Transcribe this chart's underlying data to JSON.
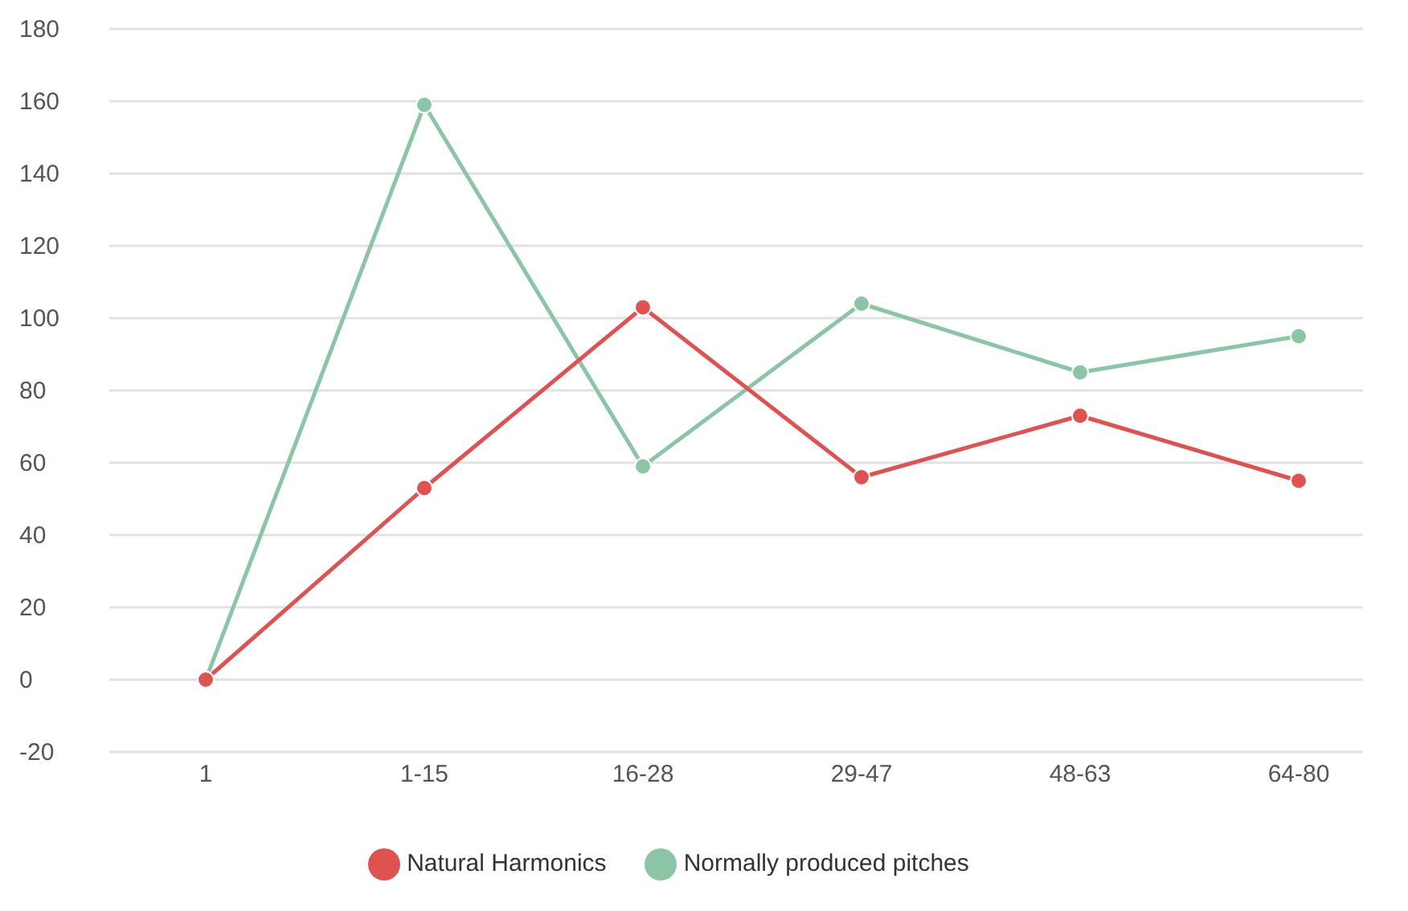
{
  "chart_data": {
    "type": "line",
    "categories": [
      "1",
      "1-15",
      "16-28",
      "29-47",
      "48-63",
      "64-80"
    ],
    "series": [
      {
        "name": "Normally produced pitches",
        "color": "#8cc5a6",
        "values": [
          0,
          159,
          59,
          104,
          85,
          95
        ]
      },
      {
        "name": "Natural Harmonics",
        "color": "#e05252",
        "values": [
          0,
          53,
          103,
          56,
          73,
          55
        ]
      }
    ],
    "ylim": [
      -20,
      180
    ],
    "yticks": [
      -20,
      0,
      20,
      40,
      60,
      80,
      100,
      120,
      140,
      160,
      180
    ],
    "grid": "y",
    "legend": "bottom",
    "marker": "circle",
    "line_style": "solid"
  }
}
